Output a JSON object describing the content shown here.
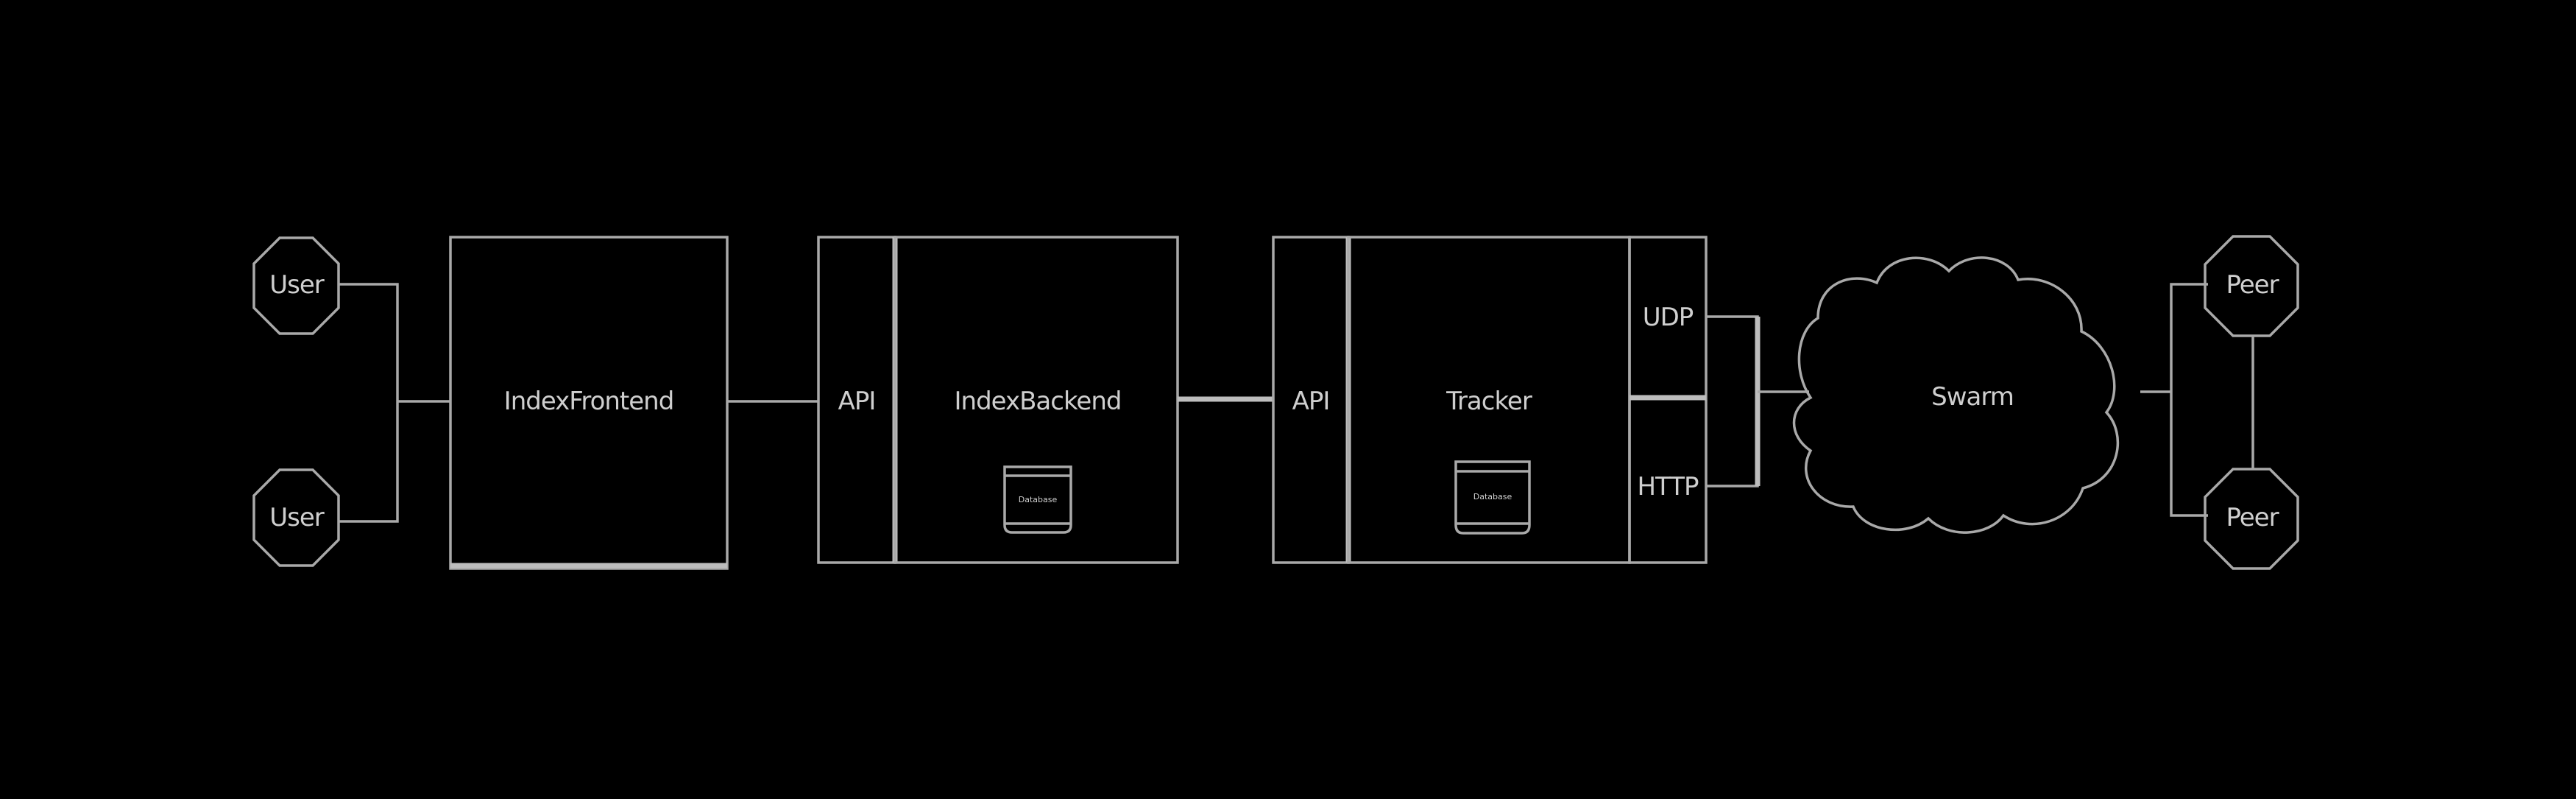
{
  "diagram": {
    "colors": {
      "background": "#000000",
      "line": "#a9a9a9",
      "text": "#cfcfcf"
    },
    "nodes": {
      "user_top": "User",
      "user_bottom": "User",
      "index_frontend": "IndexFrontend",
      "api": "API",
      "index_backend": "IndexBackend",
      "index_backend_db_icon_label": "Database",
      "tracker_side_label": "API",
      "tracker": "Tracker",
      "tracker_db_icon_label": "Database",
      "udp": "UDP",
      "http": "HTTP",
      "swarm": "Swarm",
      "peer_top": "Peer",
      "peer_bottom": "Peer"
    },
    "icons": [
      "database-icon",
      "cloud-icon",
      "octagon-icon"
    ]
  }
}
